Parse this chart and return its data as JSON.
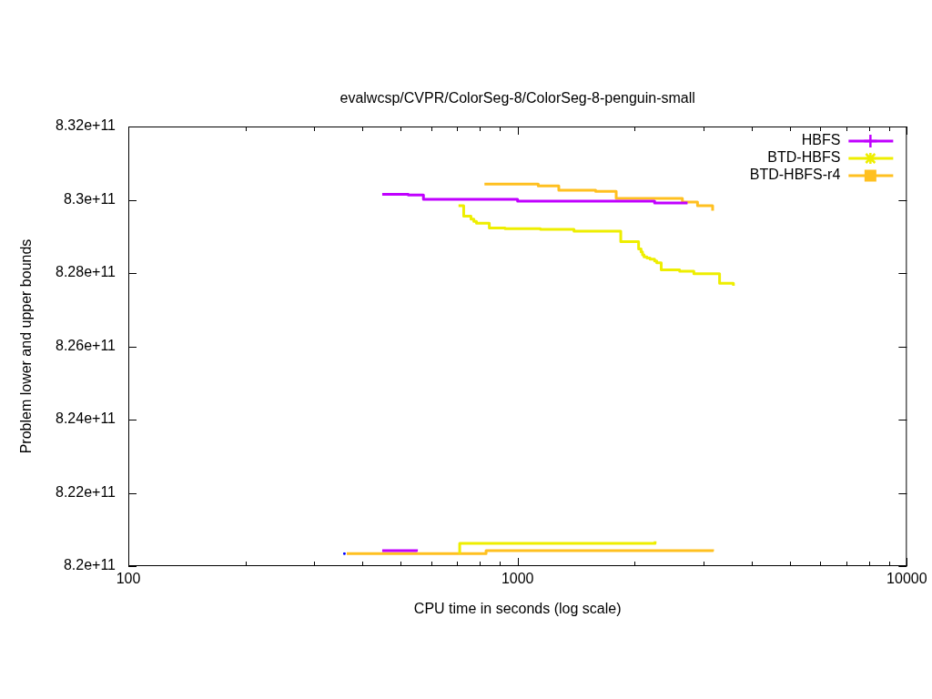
{
  "chart_data": {
    "type": "step",
    "title": "evalwcsp/CVPR/ColorSeg-8/ColorSeg-8-penguin-small",
    "xlabel": "CPU time in seconds (log scale)",
    "ylabel": "Problem lower and upper bounds",
    "log": "x",
    "legend": "top right",
    "xlim": [
      100,
      10000
    ],
    "xticks": [
      100,
      {
        "value": 200,
        "label": null
      },
      {
        "value": 300,
        "label": null
      },
      {
        "value": 400,
        "label": null
      },
      {
        "value": 500,
        "label": null
      },
      {
        "value": 600,
        "label": null
      },
      {
        "value": 700,
        "label": null
      },
      {
        "value": 800,
        "label": null
      },
      {
        "value": 900,
        "label": null
      },
      1000,
      {
        "value": 2000,
        "label": null
      },
      {
        "value": 3000,
        "label": null
      },
      {
        "value": 4000,
        "label": null
      },
      {
        "value": 5000,
        "label": null
      },
      {
        "value": 6000,
        "label": null
      },
      {
        "value": 7000,
        "label": null
      },
      {
        "value": 8000,
        "label": null
      },
      {
        "value": 9000,
        "label": null
      },
      10000
    ],
    "ylim": [
      820000000000,
      832000000000
    ],
    "yticks": [
      {
        "value": 820000000000,
        "label": "8.2e+11"
      },
      {
        "value": 822000000000,
        "label": "8.22e+11"
      },
      {
        "value": 824000000000,
        "label": "8.24e+11"
      },
      {
        "value": 826000000000,
        "label": "8.26e+11"
      },
      {
        "value": 828000000000,
        "label": "8.28e+11"
      },
      {
        "value": 830000000000,
        "label": "8.3e+11"
      },
      {
        "value": 832000000000,
        "label": "8.32e+11"
      }
    ],
    "series": [
      {
        "name": "HBFS",
        "color": "#c000ff",
        "x": [
          449,
          524,
          573,
          1000,
          2249,
          2733
        ],
        "values": [
          830150000000,
          830130000000,
          830010000000,
          829960000000,
          829910000000,
          829910000000
        ]
      },
      {
        "color": "#c000ff",
        "x": [
          449,
          550
        ],
        "values": [
          820420000000,
          820460000000
        ]
      },
      {
        "name": "BTD-HBFS",
        "color": "#eeee00",
        "x": [
          705,
          727,
          759,
          772,
          784,
          846,
          929,
          1145,
          1396,
          1841,
          2046,
          2076,
          2094,
          2113,
          2150,
          2190,
          2249,
          2278,
          2339,
          2608,
          2837,
          3303,
          3585
        ],
        "values": [
          829840000000,
          829550000000,
          829470000000,
          829410000000,
          829360000000,
          829230000000,
          829210000000,
          829190000000,
          829140000000,
          828860000000,
          828660000000,
          828580000000,
          828500000000,
          828440000000,
          828410000000,
          828380000000,
          828330000000,
          828280000000,
          828090000000,
          828050000000,
          827980000000,
          827720000000,
          827650000000
        ]
      },
      {
        "color": "#eeee00",
        "x": [
          710,
          710,
          2256
        ],
        "values": [
          820340000000,
          820620000000,
          820680000000
        ]
      },
      {
        "name": "BTD-HBFS-r4",
        "color": "#ffc020",
        "x": [
          822,
          1130,
          1276,
          1587,
          1792,
          2651,
          2899,
          3170
        ],
        "values": [
          830430000000,
          830380000000,
          830260000000,
          830230000000,
          830040000000,
          829940000000,
          829840000000,
          829700000000
        ]
      },
      {
        "color": "#ffc020",
        "x": [
          364,
          830,
          3170
        ],
        "values": [
          820340000000,
          820420000000,
          820460000000
        ]
      },
      {
        "type": "scatter",
        "color": "#0000ff",
        "marker": "square",
        "x": [
          359
        ],
        "values": [
          820340000000
        ]
      }
    ]
  }
}
